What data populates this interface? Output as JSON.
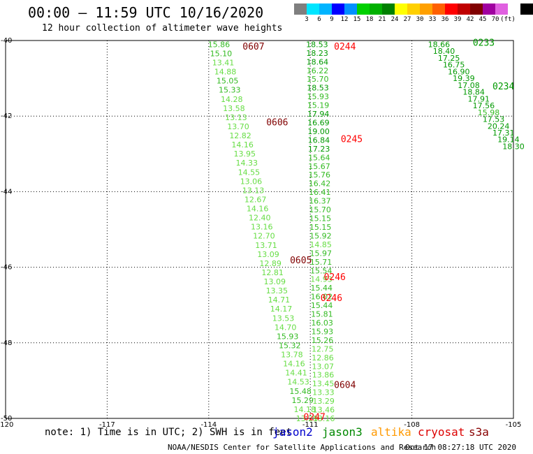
{
  "header": {
    "title": "00:00 – 11:59 UTC 10/16/2020",
    "subtitle": "12 hour collection of altimeter wave heights"
  },
  "legend": {
    "colors": [
      "#7f7f7f",
      "#00e5ff",
      "#00b4ff",
      "#0000ff",
      "#0090ff",
      "#00d000",
      "#00b000",
      "#008000",
      "#ffff00",
      "#ffd000",
      "#ffa000",
      "#ff6000",
      "#ff0000",
      "#c00000",
      "#800000",
      "#a000a0",
      "#e060e0",
      "#ffffff",
      "#000000"
    ],
    "labels": [
      "3",
      "6",
      "9",
      "12",
      "15",
      "18",
      "21",
      "24",
      "27",
      "30",
      "33",
      "36",
      "39",
      "42",
      "45",
      "70",
      "(ft)"
    ]
  },
  "map": {
    "lon_ticks": [
      "-120",
      "-117",
      "-114",
      "-111",
      "-108",
      "-105"
    ],
    "lat_ticks": [
      "-40",
      "-42",
      "-44",
      "-46",
      "-48",
      "-50"
    ],
    "lon_range": [
      -120,
      -105
    ],
    "lat_range": [
      -50,
      -40
    ],
    "colors": {
      "light": "#66dd44",
      "mid": "#33bb22",
      "dark": "#009900",
      "red": "#ff0000",
      "darkred": "#800000"
    },
    "tracks": [
      {
        "lon0": -113.7,
        "lat0": -40.1,
        "lon1": -111.1,
        "lat1": -50.0,
        "values": [
          "15.86",
          "15.10",
          "13.41",
          "14.88",
          "15.05",
          "15.33",
          "14.28",
          "13.58",
          "13.13",
          "13.70",
          "12.82",
          "14.16",
          "13.95",
          "14.33",
          "14.55",
          "13.06",
          "13.13",
          "12.67",
          "14.16",
          "12.40",
          "13.16",
          "12.70",
          "13.71",
          "13.09",
          "12.89",
          "12.81",
          "13.09",
          "13.35",
          "14.71",
          "14.17",
          "13.53",
          "14.70",
          "15.93",
          "15.32",
          "13.78",
          "14.16",
          "14.41",
          "14.53",
          "15.48",
          "15.29",
          "14.18",
          "13.29"
        ]
      },
      {
        "lon0": -110.8,
        "lat0": -40.1,
        "lon1": -110.6,
        "lat1": -50.0,
        "values": [
          "18.53",
          "18.23",
          "18.64",
          "16.22",
          "15.70",
          "18.53",
          "15.93",
          "15.19",
          "17.94",
          "16.69",
          "19.00",
          "16.84",
          "17.23",
          "15.64",
          "15.67",
          "15.76",
          "16.42",
          "16.41",
          "16.37",
          "15.70",
          "15.15",
          "15.15",
          "15.92",
          "14.85",
          "15.97",
          "15.71",
          "15.54",
          "14.93",
          "15.44",
          "16.02",
          "15.44",
          "15.81",
          "16.03",
          "15.93",
          "15.26",
          "12.75",
          "12.86",
          "13.07",
          "13.86",
          "13.45",
          "13.33",
          "13.29",
          "13.46",
          "13.16"
        ]
      },
      {
        "lon0": -107.2,
        "lat0": -40.1,
        "lon1": -105.0,
        "lat1": -42.8,
        "values": [
          "18.66",
          "18.40",
          "17.25",
          "16.75",
          "16.90",
          "19.39",
          "17.08",
          "18.84",
          "17.91",
          "17.56",
          "15.98",
          "17.53",
          "20.24",
          "17.31",
          "19.14",
          "18.30"
        ]
      }
    ],
    "time_labels": [
      {
        "text": "0607",
        "lon": -113.0,
        "lat": -40.15,
        "tone": "darkred"
      },
      {
        "text": "0606",
        "lon": -112.3,
        "lat": -42.15,
        "tone": "darkred"
      },
      {
        "text": "0605",
        "lon": -111.6,
        "lat": -45.8,
        "tone": "darkred"
      },
      {
        "text": "0604",
        "lon": -110.3,
        "lat": -49.1,
        "tone": "darkred"
      },
      {
        "text": "0244",
        "lon": -110.3,
        "lat": -40.15,
        "tone": "red"
      },
      {
        "text": "0245",
        "lon": -110.1,
        "lat": -42.6,
        "tone": "red"
      },
      {
        "text": "0246",
        "lon": -110.6,
        "lat": -46.25,
        "tone": "red"
      },
      {
        "text": "0246",
        "lon": -110.7,
        "lat": -46.8,
        "tone": "red"
      },
      {
        "text": "0247",
        "lon": -111.2,
        "lat": -49.95,
        "tone": "red"
      },
      {
        "text": "0233",
        "lon": -106.2,
        "lat": -40.05,
        "tone": "dark"
      },
      {
        "text": "0234",
        "lon": -105.4,
        "lat": -41.2,
        "tone": "dark"
      }
    ]
  },
  "note": "note: 1) Time is in UTC; 2) SWH is in feet",
  "satellites": [
    {
      "name": "jason2",
      "color": "#0000cc"
    },
    {
      "name": "jason3",
      "color": "#008800"
    },
    {
      "name": "altika",
      "color": "#ff9900"
    },
    {
      "name": "cryosat",
      "color": "#dd0000"
    },
    {
      "name": "s3a",
      "color": "#880000"
    }
  ],
  "footer": {
    "source": "NOAA/NESDIS Center for Satellite Applications and Research",
    "timestamp": "Oct 17 08:27:18 UTC 2020"
  }
}
